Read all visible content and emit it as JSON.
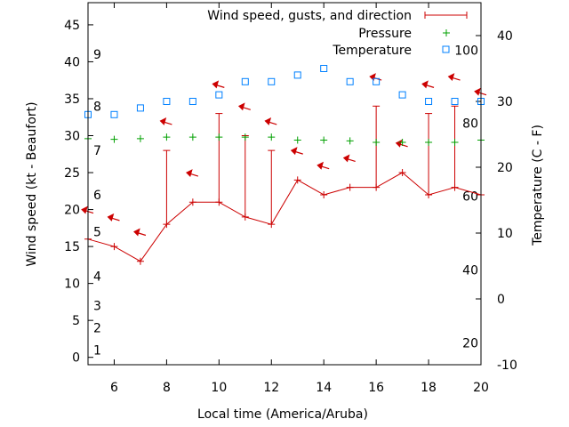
{
  "chart_data": {
    "type": "line",
    "title": "",
    "xlabel": "Local time (America/Aruba)",
    "ylabel": "Wind speed (kt - Beaufort)",
    "y2label": "Temperature (C - F)",
    "xlim": [
      5,
      20
    ],
    "ylim": [
      -1,
      48
    ],
    "y2lim": [
      -10,
      45
    ],
    "x_ticks": [
      6,
      8,
      10,
      12,
      14,
      16,
      18,
      20
    ],
    "y_ticks": [
      0,
      5,
      10,
      15,
      20,
      25,
      30,
      35,
      40,
      45
    ],
    "y2_ticks": [
      -10,
      0,
      10,
      20,
      30,
      40
    ],
    "beaufort_ticks": [
      {
        "label": "1",
        "kt": 1
      },
      {
        "label": "2",
        "kt": 4
      },
      {
        "label": "3",
        "kt": 7
      },
      {
        "label": "4",
        "kt": 11
      },
      {
        "label": "5",
        "kt": 17
      },
      {
        "label": "6",
        "kt": 22
      },
      {
        "label": "7",
        "kt": 28
      },
      {
        "label": "8",
        "kt": 34
      },
      {
        "label": "9",
        "kt": 41
      }
    ],
    "fahrenheit_ticks": [
      {
        "label": "20",
        "c": -6.7
      },
      {
        "label": "40",
        "c": 4.4
      },
      {
        "label": "60",
        "c": 15.6
      },
      {
        "label": "80",
        "c": 26.7
      },
      {
        "label": "100",
        "c": 37.8
      }
    ],
    "legend": {
      "position": "top-right",
      "wind": "Wind speed, gusts, and direction",
      "pressure": "Pressure",
      "temperature": "Temperature"
    },
    "colors": {
      "wind": "#cc0000",
      "pressure": "#00a000",
      "temperature": "#0080ff"
    },
    "series": [
      {
        "name": "Wind speed",
        "x": [
          5,
          6,
          7,
          8,
          9,
          10,
          11,
          12,
          13,
          14,
          15,
          16,
          17,
          18,
          19,
          20
        ],
        "values": [
          16,
          15,
          13,
          18,
          21,
          21,
          19,
          18,
          24,
          22,
          23,
          23,
          25,
          22,
          23,
          22
        ],
        "gusts": [
          null,
          null,
          null,
          28,
          null,
          33,
          30,
          28,
          null,
          null,
          null,
          34,
          null,
          33,
          34,
          null
        ],
        "direction_arrow_kt": [
          20,
          19,
          17,
          32,
          25,
          37,
          34,
          32,
          28,
          26,
          27,
          38,
          29,
          37,
          38,
          36
        ]
      },
      {
        "name": "Pressure",
        "x": [
          5,
          6,
          7,
          8,
          9,
          10,
          11,
          12,
          13,
          14,
          15,
          16,
          17,
          18,
          19,
          20
        ],
        "values": [
          29.6,
          29.5,
          29.6,
          29.8,
          29.8,
          29.8,
          29.8,
          29.8,
          29.4,
          29.4,
          29.3,
          29.1,
          29.1,
          29.1,
          29.1,
          29.4
        ]
      },
      {
        "name": "Temperature",
        "x": [
          5,
          6,
          7,
          8,
          9,
          10,
          11,
          12,
          13,
          14,
          15,
          16,
          17,
          18,
          19,
          20
        ],
        "values": [
          28,
          28,
          29,
          30,
          30,
          31,
          33,
          33,
          34,
          35,
          33,
          33,
          31,
          30,
          30,
          30
        ]
      }
    ]
  }
}
